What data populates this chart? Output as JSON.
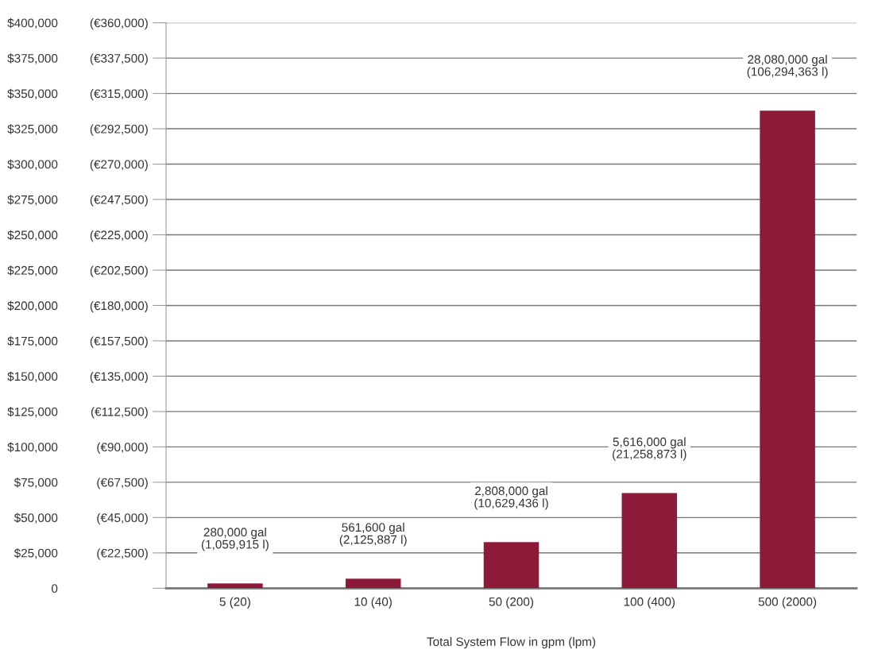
{
  "chart_data": {
    "type": "bar",
    "xlabel": "Total System Flow in gpm (lpm)",
    "categories": [
      "5 (20)",
      "10 (40)",
      "50 (200)",
      "100 (400)",
      "500 (2000)"
    ],
    "values": [
      3400,
      6800,
      32600,
      67300,
      337800
    ],
    "color": "#8c1a38",
    "ylim": [
      0,
      400000
    ],
    "yticks": [
      0,
      {
        "value": 25000,
        "label": "$25,000"
      },
      {
        "value": 50000,
        "label": "$50,000"
      },
      {
        "value": 75000,
        "label": "$75,000"
      },
      {
        "value": 100000,
        "label": "$100,000"
      },
      {
        "value": 125000,
        "label": "$125,000"
      },
      {
        "value": 150000,
        "label": "$150,000"
      },
      {
        "value": 175000,
        "label": "$175,000"
      },
      {
        "value": 200000,
        "label": "$200,000"
      },
      {
        "value": 225000,
        "label": "$225,000"
      },
      {
        "value": 250000,
        "label": "$250,000"
      },
      {
        "value": 275000,
        "label": "$275,000"
      },
      {
        "value": 300000,
        "label": "$300,000"
      },
      {
        "value": 325000,
        "label": "$325,000"
      },
      {
        "value": 350000,
        "label": "$350,000"
      },
      {
        "value": 375000,
        "label": "$375,000"
      },
      {
        "value": 400000,
        "label": "$400,000"
      }
    ],
    "y2lim": [
      0,
      360000
    ],
    "y2ticks": [
      {
        "value": 22500,
        "label": "(€22,500)"
      },
      {
        "value": 45000,
        "label": "(€45,000)"
      },
      {
        "value": 67500,
        "label": "(€67,500)"
      },
      {
        "value": 90000,
        "label": "(€90,000)"
      },
      {
        "value": 112500,
        "label": "(€112,500)"
      },
      {
        "value": 135000,
        "label": "(€135,000)"
      },
      {
        "value": 157500,
        "label": "(€157,500)"
      },
      {
        "value": 180000,
        "label": "(€180,000)"
      },
      {
        "value": 202500,
        "label": "(€202,500)"
      },
      {
        "value": 225000,
        "label": "(€225,000)"
      },
      {
        "value": 247500,
        "label": "(€247,500)"
      },
      {
        "value": 270000,
        "label": "(€270,000)"
      },
      {
        "value": 292500,
        "label": "(€292,500)"
      },
      {
        "value": 315000,
        "label": "(€315,000)"
      },
      {
        "value": 337500,
        "label": "(€337,500)"
      },
      {
        "value": 360000,
        "label": "(€360,000)"
      }
    ],
    "grid": "y",
    "annotations": [
      "280,000 gal\n(1,059,915 l)",
      "561,600 gal\n(2,125,887 l)",
      "2,808,000 gal\n(10,629,436 l)",
      "5,616,000 gal\n(21,258,873 l)",
      "28,080,000 gal\n(106,294,363 l)"
    ]
  }
}
